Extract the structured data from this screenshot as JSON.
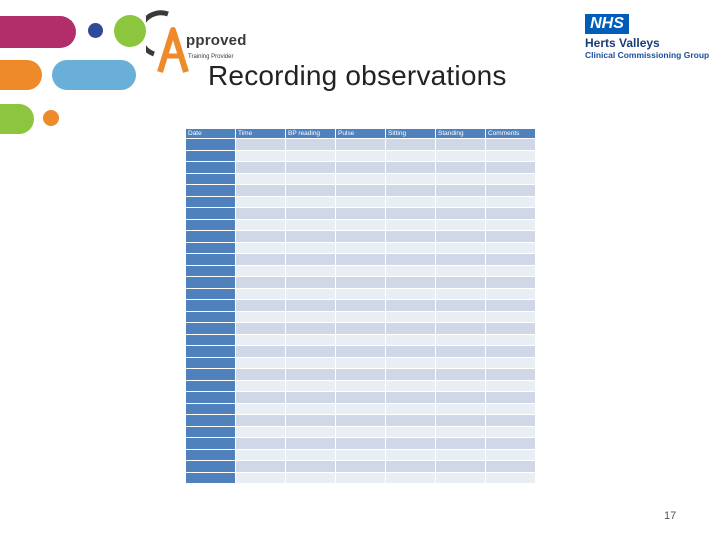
{
  "logo": {
    "word": "pproved",
    "tagline": "Training Provider"
  },
  "nhs_logo": {
    "badge": "NHS",
    "name": "Herts Valleys",
    "subtitle": "Clinical Commissioning Group"
  },
  "title": "Recording observations",
  "table": {
    "headers": [
      "Date",
      "Time",
      "BP reading",
      "Pulse",
      "Sitting",
      "Standing",
      "Comments"
    ],
    "empty_row_count": 30
  },
  "page_number": "17",
  "colors": {
    "header_blue": "#4f81bd",
    "row_dark": "#d0d8e8",
    "row_light": "#e9edf4",
    "magenta": "#b22e6a",
    "orange": "#ee8a2a",
    "light_blue": "#6aafd8",
    "green": "#8cc63f",
    "navy": "#2e4a9a"
  }
}
